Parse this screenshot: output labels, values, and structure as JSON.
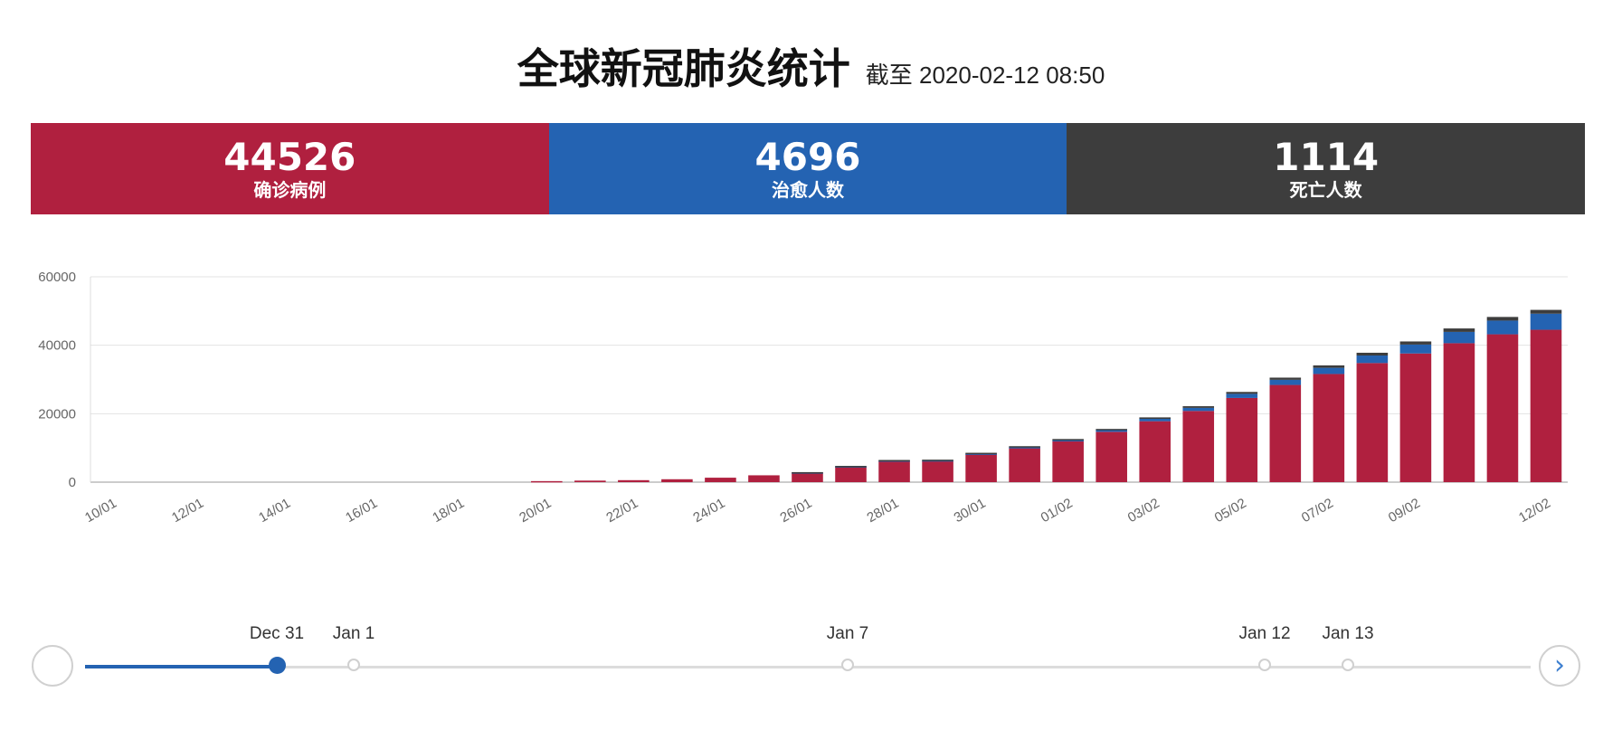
{
  "header": {
    "title": "全球新冠肺炎统计",
    "subtitle": "截至 2020-02-12 08:50"
  },
  "stats": [
    {
      "value": "44526",
      "label": "确诊病例",
      "color": "#b0203f"
    },
    {
      "value": "4696",
      "label": "治愈人数",
      "color": "#2463b2"
    },
    {
      "value": "1114",
      "label": "死亡人数",
      "color": "#3d3d3d"
    }
  ],
  "chart_data": {
    "type": "bar",
    "stacked": true,
    "grid": true,
    "legend": "none",
    "ylim": [
      0,
      60000
    ],
    "yticks": [
      "0",
      "20000",
      "40000",
      "60000"
    ],
    "xticks": [
      "10/01",
      "12/01",
      "14/01",
      "16/01",
      "18/01",
      "20/01",
      "22/01",
      "24/01",
      "26/01",
      "28/01",
      "30/01",
      "01/02",
      "03/02",
      "05/02",
      "07/02",
      "09/02",
      "12/02"
    ],
    "categories": [
      "10/01",
      "11/01",
      "12/01",
      "13/01",
      "14/01",
      "15/01",
      "16/01",
      "17/01",
      "18/01",
      "19/01",
      "20/01",
      "21/01",
      "22/01",
      "23/01",
      "24/01",
      "25/01",
      "26/01",
      "27/01",
      "28/01",
      "29/01",
      "30/01",
      "31/01",
      "01/02",
      "02/02",
      "03/02",
      "04/02",
      "05/02",
      "06/02",
      "07/02",
      "08/02",
      "09/02",
      "10/02",
      "11/02",
      "12/02"
    ],
    "series": [
      {
        "color": "#b0203f",
        "values": [
          0,
          0,
          0,
          0,
          0,
          0,
          0,
          0,
          0,
          0,
          300,
          450,
          580,
          850,
          1300,
          2000,
          2800,
          4500,
          6100,
          6100,
          8200,
          10000,
          12000,
          14700,
          17800,
          20800,
          24600,
          28400,
          31600,
          34800,
          37600,
          40600,
          43200,
          44526
        ]
      },
      {
        "color": "#2463b2",
        "values": [
          0,
          0,
          0,
          0,
          0,
          0,
          0,
          0,
          0,
          0,
          0,
          0,
          0,
          0,
          0,
          0,
          50,
          150,
          250,
          300,
          170,
          250,
          300,
          500,
          700,
          900,
          1200,
          1500,
          1800,
          2200,
          2600,
          3300,
          4000,
          4696
        ]
      },
      {
        "color": "#3d3d3d",
        "values": [
          0,
          0,
          0,
          0,
          0,
          0,
          0,
          0,
          0,
          0,
          0,
          0,
          0,
          0,
          0,
          0,
          80,
          100,
          130,
          170,
          210,
          260,
          300,
          350,
          425,
          490,
          560,
          640,
          720,
          810,
          910,
          1010,
          1070,
          1114
        ]
      }
    ]
  },
  "timeline": {
    "next_icon": "chevron-right-icon",
    "nodes": [
      {
        "label": "Dec 31",
        "active": true
      },
      {
        "label": "Jan 1",
        "active": false
      },
      {
        "label": "Jan 7",
        "active": false
      },
      {
        "label": "Jan 12",
        "active": false
      },
      {
        "label": "Jan 13",
        "active": false
      }
    ]
  }
}
